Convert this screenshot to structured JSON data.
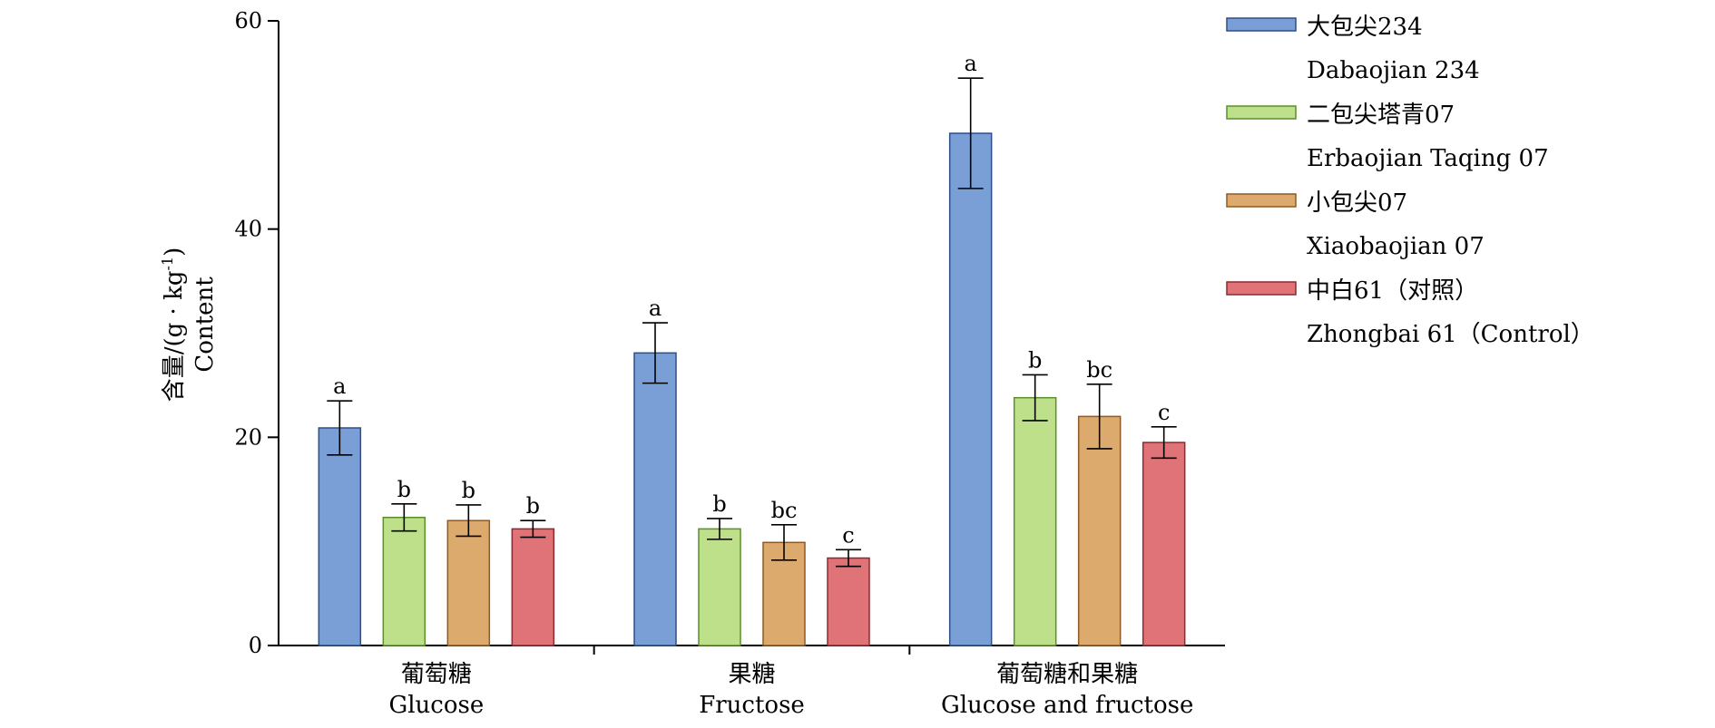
{
  "chart_data": {
    "type": "bar",
    "ylabel": {
      "zh": "含量/(g · kg",
      "sup": "-1",
      "close": ")",
      "en": "Content"
    },
    "ylim": [
      0,
      60
    ],
    "yticks": [
      "0",
      "20",
      "40",
      "60"
    ],
    "categories": [
      {
        "zh": "葡萄糖",
        "en": "Glucose"
      },
      {
        "zh": "果糖",
        "en": "Fructose"
      },
      {
        "zh": "葡萄糖和果糖",
        "en": "Glucose and fructose"
      }
    ],
    "series": [
      {
        "name_zh": "大包尖234",
        "name_en": "Dabaojian 234",
        "fill": "#7a9fd6",
        "stroke": "#2c4f8a",
        "values": [
          20.9,
          28.1,
          49.2
        ],
        "errors": [
          2.6,
          2.9,
          5.3
        ],
        "letters": [
          "a",
          "a",
          "a"
        ]
      },
      {
        "name_zh": "二包尖塔青07",
        "name_en": "Erbaojian Taqing 07",
        "fill": "#bfe08a",
        "stroke": "#5a8f2a",
        "values": [
          12.3,
          11.2,
          23.8
        ],
        "errors": [
          1.3,
          1.0,
          2.2
        ],
        "letters": [
          "b",
          "b",
          "b"
        ]
      },
      {
        "name_zh": "小包尖07",
        "name_en": "Xiaobaojian 07",
        "fill": "#ddaa6e",
        "stroke": "#8f5a22",
        "values": [
          12.0,
          9.9,
          22.0
        ],
        "errors": [
          1.5,
          1.7,
          3.1
        ],
        "letters": [
          "b",
          "bc",
          "bc"
        ]
      },
      {
        "name_zh": "中白61（对照）",
        "name_en": "Zhongbai 61（Control）",
        "fill": "#e07378",
        "stroke": "#8a2a30",
        "values": [
          11.2,
          8.4,
          19.5
        ],
        "errors": [
          0.8,
          0.8,
          1.5
        ],
        "letters": [
          "b",
          "c",
          "c"
        ]
      }
    ],
    "legend_position": "right",
    "grid": false
  }
}
